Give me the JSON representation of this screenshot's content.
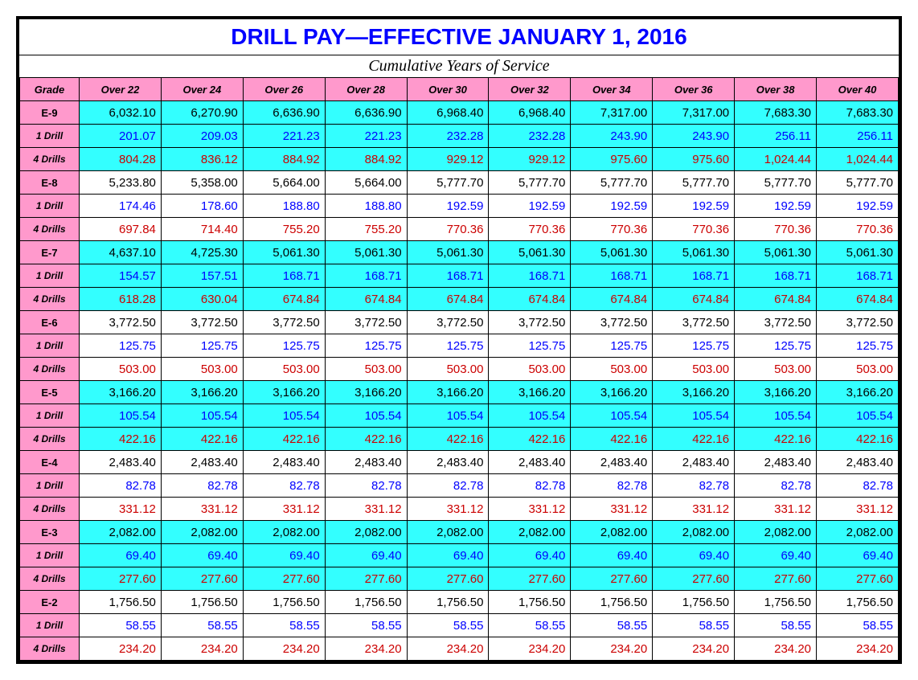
{
  "title": "DRILL PAY—EFFECTIVE JANUARY 1, 2016",
  "subtitle": "Cumulative Years of Service",
  "columns": [
    "Grade",
    "Over 22",
    "Over 24",
    "Over 26",
    "Over 28",
    "Over 30",
    "Over 32",
    "Over 34",
    "Over 36",
    "Over 38",
    "Over 40"
  ],
  "colors": {
    "pink": "#ff99cc",
    "cyan": "#33ffff",
    "blue": "#0000ff",
    "red": "#cc0000",
    "black": "#000000"
  },
  "groups": [
    {
      "grade": "E-9",
      "rows": [
        {
          "label": "E-9",
          "style": "grade",
          "bg": "cyan",
          "text": "black",
          "vals": [
            "6,032.10",
            "6,270.90",
            "6,636.90",
            "6,636.90",
            "6,968.40",
            "6,968.40",
            "7,317.00",
            "7,317.00",
            "7,683.30",
            "7,683.30"
          ]
        },
        {
          "label": "1 Drill",
          "style": "drill",
          "bg": "cyan",
          "text": "blue",
          "vals": [
            "201.07",
            "209.03",
            "221.23",
            "221.23",
            "232.28",
            "232.28",
            "243.90",
            "243.90",
            "256.11",
            "256.11"
          ]
        },
        {
          "label": "4 Drills",
          "style": "drill",
          "bg": "cyan",
          "text": "red",
          "vals": [
            "804.28",
            "836.12",
            "884.92",
            "884.92",
            "929.12",
            "929.12",
            "975.60",
            "975.60",
            "1,024.44",
            "1,024.44"
          ]
        }
      ]
    },
    {
      "grade": "E-8",
      "rows": [
        {
          "label": "E-8",
          "style": "grade",
          "bg": "white",
          "text": "black",
          "vals": [
            "5,233.80",
            "5,358.00",
            "5,664.00",
            "5,664.00",
            "5,777.70",
            "5,777.70",
            "5,777.70",
            "5,777.70",
            "5,777.70",
            "5,777.70"
          ]
        },
        {
          "label": "1 Drill",
          "style": "drill",
          "bg": "white",
          "text": "blue",
          "vals": [
            "174.46",
            "178.60",
            "188.80",
            "188.80",
            "192.59",
            "192.59",
            "192.59",
            "192.59",
            "192.59",
            "192.59"
          ]
        },
        {
          "label": "4 Drills",
          "style": "drill",
          "bg": "white",
          "text": "red",
          "vals": [
            "697.84",
            "714.40",
            "755.20",
            "755.20",
            "770.36",
            "770.36",
            "770.36",
            "770.36",
            "770.36",
            "770.36"
          ]
        }
      ]
    },
    {
      "grade": "E-7",
      "rows": [
        {
          "label": "E-7",
          "style": "grade",
          "bg": "cyan",
          "text": "black",
          "vals": [
            "4,637.10",
            "4,725.30",
            "5,061.30",
            "5,061.30",
            "5,061.30",
            "5,061.30",
            "5,061.30",
            "5,061.30",
            "5,061.30",
            "5,061.30"
          ]
        },
        {
          "label": "1 Drill",
          "style": "drill",
          "bg": "cyan",
          "text": "blue",
          "vals": [
            "154.57",
            "157.51",
            "168.71",
            "168.71",
            "168.71",
            "168.71",
            "168.71",
            "168.71",
            "168.71",
            "168.71"
          ]
        },
        {
          "label": "4 Drills",
          "style": "drill",
          "bg": "cyan",
          "text": "red",
          "vals": [
            "618.28",
            "630.04",
            "674.84",
            "674.84",
            "674.84",
            "674.84",
            "674.84",
            "674.84",
            "674.84",
            "674.84"
          ]
        }
      ]
    },
    {
      "grade": "E-6",
      "rows": [
        {
          "label": "E-6",
          "style": "grade",
          "bg": "white",
          "text": "black",
          "vals": [
            "3,772.50",
            "3,772.50",
            "3,772.50",
            "3,772.50",
            "3,772.50",
            "3,772.50",
            "3,772.50",
            "3,772.50",
            "3,772.50",
            "3,772.50"
          ]
        },
        {
          "label": "1 Drill",
          "style": "drill",
          "bg": "white",
          "text": "blue",
          "vals": [
            "125.75",
            "125.75",
            "125.75",
            "125.75",
            "125.75",
            "125.75",
            "125.75",
            "125.75",
            "125.75",
            "125.75"
          ]
        },
        {
          "label": "4 Drills",
          "style": "drill",
          "bg": "white",
          "text": "red",
          "vals": [
            "503.00",
            "503.00",
            "503.00",
            "503.00",
            "503.00",
            "503.00",
            "503.00",
            "503.00",
            "503.00",
            "503.00"
          ]
        }
      ]
    },
    {
      "grade": "E-5",
      "rows": [
        {
          "label": "E-5",
          "style": "grade",
          "bg": "cyan",
          "text": "black",
          "vals": [
            "3,166.20",
            "3,166.20",
            "3,166.20",
            "3,166.20",
            "3,166.20",
            "3,166.20",
            "3,166.20",
            "3,166.20",
            "3,166.20",
            "3,166.20"
          ]
        },
        {
          "label": "1 Drill",
          "style": "drill",
          "bg": "cyan",
          "text": "blue",
          "vals": [
            "105.54",
            "105.54",
            "105.54",
            "105.54",
            "105.54",
            "105.54",
            "105.54",
            "105.54",
            "105.54",
            "105.54"
          ]
        },
        {
          "label": "4 Drills",
          "style": "drill",
          "bg": "cyan",
          "text": "red",
          "vals": [
            "422.16",
            "422.16",
            "422.16",
            "422.16",
            "422.16",
            "422.16",
            "422.16",
            "422.16",
            "422.16",
            "422.16"
          ]
        }
      ]
    },
    {
      "grade": "E-4",
      "rows": [
        {
          "label": "E-4",
          "style": "grade",
          "bg": "white",
          "text": "black",
          "vals": [
            "2,483.40",
            "2,483.40",
            "2,483.40",
            "2,483.40",
            "2,483.40",
            "2,483.40",
            "2,483.40",
            "2,483.40",
            "2,483.40",
            "2,483.40"
          ]
        },
        {
          "label": "1 Drill",
          "style": "drill",
          "bg": "white",
          "text": "blue",
          "vals": [
            "82.78",
            "82.78",
            "82.78",
            "82.78",
            "82.78",
            "82.78",
            "82.78",
            "82.78",
            "82.78",
            "82.78"
          ]
        },
        {
          "label": "4 Drills",
          "style": "drill",
          "bg": "white",
          "text": "red",
          "vals": [
            "331.12",
            "331.12",
            "331.12",
            "331.12",
            "331.12",
            "331.12",
            "331.12",
            "331.12",
            "331.12",
            "331.12"
          ]
        }
      ]
    },
    {
      "grade": "E-3",
      "rows": [
        {
          "label": "E-3",
          "style": "grade",
          "bg": "cyan",
          "text": "black",
          "vals": [
            "2,082.00",
            "2,082.00",
            "2,082.00",
            "2,082.00",
            "2,082.00",
            "2,082.00",
            "2,082.00",
            "2,082.00",
            "2,082.00",
            "2,082.00"
          ]
        },
        {
          "label": "1 Drill",
          "style": "drill",
          "bg": "cyan",
          "text": "blue",
          "vals": [
            "69.40",
            "69.40",
            "69.40",
            "69.40",
            "69.40",
            "69.40",
            "69.40",
            "69.40",
            "69.40",
            "69.40"
          ]
        },
        {
          "label": "4 Drills",
          "style": "drill",
          "bg": "cyan",
          "text": "red",
          "vals": [
            "277.60",
            "277.60",
            "277.60",
            "277.60",
            "277.60",
            "277.60",
            "277.60",
            "277.60",
            "277.60",
            "277.60"
          ]
        }
      ]
    },
    {
      "grade": "E-2",
      "rows": [
        {
          "label": "E-2",
          "style": "grade",
          "bg": "white",
          "text": "black",
          "vals": [
            "1,756.50",
            "1,756.50",
            "1,756.50",
            "1,756.50",
            "1,756.50",
            "1,756.50",
            "1,756.50",
            "1,756.50",
            "1,756.50",
            "1,756.50"
          ]
        },
        {
          "label": "1 Drill",
          "style": "drill",
          "bg": "white",
          "text": "blue",
          "vals": [
            "58.55",
            "58.55",
            "58.55",
            "58.55",
            "58.55",
            "58.55",
            "58.55",
            "58.55",
            "58.55",
            "58.55"
          ]
        },
        {
          "label": "4 Drills",
          "style": "drill",
          "bg": "white",
          "text": "red",
          "vals": [
            "234.20",
            "234.20",
            "234.20",
            "234.20",
            "234.20",
            "234.20",
            "234.20",
            "234.20",
            "234.20",
            "234.20"
          ]
        }
      ]
    }
  ]
}
